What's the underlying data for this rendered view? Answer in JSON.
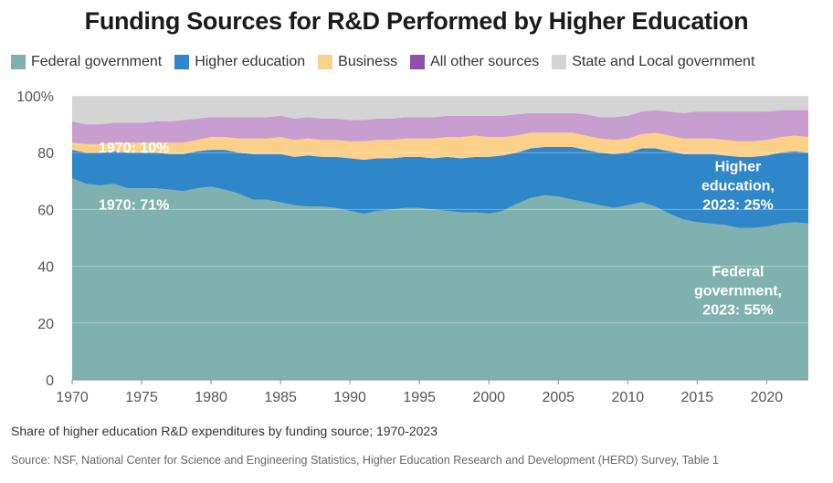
{
  "chart_data": {
    "type": "area",
    "stacked": true,
    "title": "Funding Sources for R&D Performed by Higher Education",
    "subtitle": "Share of higher education R&D expenditures by funding source; 1970-2023",
    "source": "Source: NSF, National Center for Science and Engineering Statistics, Higher Education Research and Development (HERD) Survey, Table 1",
    "xlim": [
      1970,
      2023
    ],
    "ylim": [
      0,
      100
    ],
    "x_ticks": [
      1970,
      1975,
      1980,
      1985,
      1990,
      1995,
      2000,
      2005,
      2010,
      2015,
      2020
    ],
    "y_ticks": [
      0,
      20,
      40,
      60,
      80,
      100
    ],
    "y_tick_labels": [
      "0",
      "20",
      "40",
      "60",
      "80",
      "100%"
    ],
    "grid": true,
    "legend_position": "top",
    "x": [
      1970,
      1971,
      1972,
      1973,
      1974,
      1975,
      1976,
      1977,
      1978,
      1979,
      1980,
      1981,
      1982,
      1983,
      1984,
      1985,
      1986,
      1987,
      1988,
      1989,
      1990,
      1991,
      1992,
      1993,
      1994,
      1995,
      1996,
      1997,
      1998,
      1999,
      2000,
      2001,
      2002,
      2003,
      2004,
      2005,
      2006,
      2007,
      2008,
      2009,
      2010,
      2011,
      2012,
      2013,
      2014,
      2015,
      2016,
      2017,
      2018,
      2019,
      2020,
      2021,
      2022,
      2023
    ],
    "series": [
      {
        "name": "Federal government",
        "color": "#7fb2ae",
        "values": [
          71,
          69,
          68.5,
          69,
          67.5,
          67.5,
          67.5,
          67,
          66.5,
          67.5,
          68,
          67,
          65.5,
          63.5,
          63.5,
          62.5,
          61.5,
          61,
          61,
          60.5,
          59.5,
          58.5,
          59.5,
          60,
          60.5,
          60.5,
          60,
          59.5,
          59,
          59,
          58.5,
          59.5,
          62,
          64,
          65,
          64.5,
          63.5,
          62.5,
          61.5,
          60.5,
          61.5,
          62.5,
          61,
          58.5,
          56.5,
          55.5,
          55,
          54.5,
          53.5,
          53.5,
          54,
          55,
          55.5,
          55
        ]
      },
      {
        "name": "Higher education",
        "color": "#2f86c8",
        "values": [
          10,
          11,
          11.5,
          11.5,
          12.5,
          12.5,
          12.5,
          12.5,
          13,
          13,
          13,
          14,
          14.5,
          16,
          16,
          17,
          17,
          18,
          17.5,
          18,
          18.5,
          19,
          18.5,
          18,
          18,
          18,
          18,
          19,
          19,
          19.5,
          20,
          19.5,
          18,
          17.5,
          17,
          17.5,
          18.5,
          18.5,
          18.5,
          19,
          18.5,
          19,
          20.5,
          22,
          23,
          24,
          24.5,
          24.5,
          25,
          25,
          25,
          25,
          25,
          25
        ]
      },
      {
        "name": "Business",
        "color": "#fdd08a",
        "values": [
          2.5,
          3,
          3,
          3,
          3.5,
          3.5,
          3.5,
          4,
          4,
          4,
          4.5,
          4.5,
          5,
          5.5,
          5.5,
          6,
          6,
          6,
          6,
          6,
          6,
          6.5,
          6.5,
          6.5,
          6.5,
          6.5,
          7,
          7,
          7.5,
          7.5,
          7,
          6.5,
          6,
          5.5,
          5,
          5,
          5,
          5,
          5,
          5,
          5,
          5,
          5.5,
          5.5,
          5.5,
          5.5,
          5.5,
          5.5,
          5.5,
          5.5,
          5.5,
          5.5,
          5.5,
          5.5
        ]
      },
      {
        "name": "All other sources",
        "color": "#c79ecf",
        "values": [
          7.5,
          7,
          7,
          7,
          7,
          7,
          7.5,
          7.5,
          8,
          7.5,
          7,
          7,
          7.5,
          7.5,
          7.5,
          7.5,
          7.5,
          7.5,
          7.5,
          7.5,
          7.5,
          7.5,
          7.5,
          7.5,
          7.5,
          7.5,
          7.5,
          7.5,
          7.5,
          7,
          7.5,
          7.5,
          7.5,
          7,
          7,
          7,
          7,
          7.5,
          7.5,
          8,
          8,
          8,
          8,
          8.5,
          9,
          9.5,
          9.5,
          10,
          10.5,
          10.5,
          10,
          9.5,
          9,
          9.5
        ]
      },
      {
        "name": "State and Local government",
        "color": "#d4d4d4",
        "values": [
          9,
          10,
          10,
          9.5,
          9.5,
          9.5,
          9,
          9,
          8.5,
          8,
          7.5,
          7.5,
          7.5,
          7.5,
          7.5,
          7,
          8,
          7.5,
          8,
          8,
          8.5,
          8.5,
          8,
          8,
          7.5,
          7.5,
          7.5,
          7,
          7,
          7,
          7,
          7,
          6.5,
          6,
          6,
          6,
          6,
          6.5,
          7.5,
          7.5,
          7,
          5.5,
          5,
          5.5,
          6,
          5.5,
          5.5,
          5.5,
          5.5,
          5.5,
          5.5,
          5,
          5,
          5
        ]
      }
    ],
    "annotations": [
      {
        "text": [
          "1970: 10%"
        ],
        "x": 1970,
        "y": 80
      },
      {
        "text": [
          "1970: 71%"
        ],
        "x": 1970,
        "y": 60
      },
      {
        "text": [
          "Higher",
          "education,",
          "2023: 25%"
        ],
        "x": 2023,
        "y": 67
      },
      {
        "text": [
          "Federal",
          "government,",
          "2023: 55%"
        ],
        "x": 2023,
        "y": 30
      }
    ]
  },
  "legend_swatch_colors": {
    "Federal government": "#7fb2ae",
    "Higher education": "#2f86c8",
    "Business": "#fdd08a",
    "All other sources": "#8e4fa6",
    "State and Local government": "#d4d4d4"
  }
}
